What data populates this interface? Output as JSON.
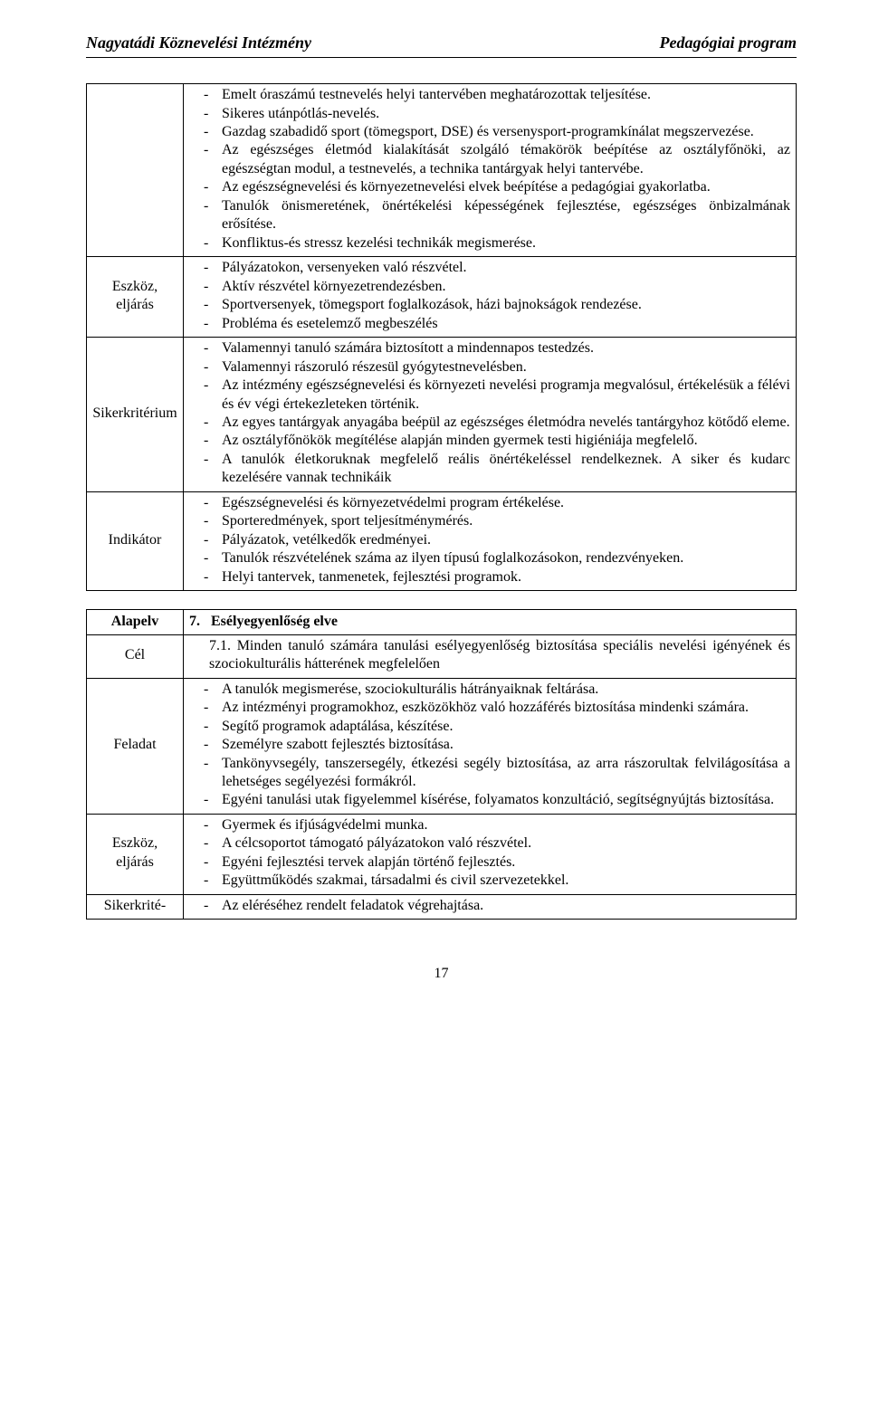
{
  "header": {
    "left": "Nagyatádi Köznevelési Intézmény",
    "right": "Pedagógiai program"
  },
  "table1": {
    "rows": [
      {
        "label": "",
        "items": [
          "Emelt óraszámú testnevelés helyi tantervében meghatározottak teljesítése.",
          "Sikeres utánpótlás-nevelés.",
          "Gazdag szabadidő sport (tömegsport, DSE) és versenysport-programkínálat megszervezése.",
          "Az egészséges életmód kialakítását szolgáló témakörök beépítése az osztályfőnöki, az egészségtan modul, a testnevelés, a technika tantárgyak helyi tantervébe.",
          "Az egészségnevelési és környezetnevelési elvek beépítése a pedagógiai gyakorlatba.",
          "Tanulók önismeretének, önértékelési képességének fejlesztése, egészséges önbizalmának erősítése.",
          "Konfliktus-és stressz kezelési technikák megismerése."
        ]
      },
      {
        "label": "Eszköz, eljárás",
        "items": [
          "Pályázatokon, versenyeken való részvétel.",
          "Aktív részvétel környezetrendezésben.",
          "Sportversenyek, tömegsport foglalkozások, házi bajnokságok rendezése.",
          "Probléma és esetelemző megbeszélés"
        ]
      },
      {
        "label": "Sikerkritérium",
        "items": [
          "Valamennyi tanuló számára biztosított a mindennapos testedzés.",
          "Valamennyi rászoruló részesül gyógytestnevelésben.",
          "Az intézmény egészségnevelési és környezeti nevelési programja megvalósul, értékelésük a félévi és év végi értekezleteken történik.",
          "Az egyes tantárgyak anyagába beépül az egészséges életmódra nevelés tantárgyhoz kötődő eleme.",
          "Az osztályfőnökök megítélése alapján minden gyermek testi higiéniája megfelelő.",
          "A tanulók életkoruknak megfelelő reális önértékeléssel rendelkeznek. A siker és kudarc kezelésére vannak technikáik"
        ]
      },
      {
        "label": "Indikátor",
        "items": [
          "Egészségnevelési és környezetvédelmi program értékelése.",
          "Sporteredmények, sport teljesítménymérés.",
          "Pályázatok, vetélkedők eredményei.",
          "Tanulók részvételének száma az ilyen típusú foglalkozásokon, rendezvényeken.",
          "Helyi tantervek, tanmenetek, fejlesztési programok."
        ]
      }
    ]
  },
  "table2": {
    "principle_label": "Alapelv",
    "principle_number": "7.",
    "principle_title": "Esélyegyenlőség elve",
    "goal_label": "Cél",
    "goal_text": "7.1. Minden tanuló számára tanulási esélyegyenlőség biztosítása speciális nevelési igényének és szociokulturális hátterének megfelelően",
    "rows": [
      {
        "label": "Feladat",
        "items": [
          "A tanulók megismerése, szociokulturális hátrányaiknak feltárása.",
          "Az intézményi programokhoz, eszközökhöz való hozzáférés biztosítása mindenki számára.",
          "Segítő programok adaptálása, készítése.",
          "Személyre szabott fejlesztés biztosítása.",
          "Tankönyvsegély, tanszersegély, étkezési segély biztosítása, az arra rászorultak felvilágosítása a lehetséges segélyezési formákról.",
          "Egyéni tanulási utak figyelemmel kísérése, folyamatos konzultáció, segítségnyújtás biztosítása."
        ]
      },
      {
        "label": "Eszköz, eljárás",
        "items": [
          "Gyermek és ifjúságvédelmi munka.",
          "A célcsoportot támogató pályázatokon való részvétel.",
          "Egyéni fejlesztési tervek alapján történő fejlesztés.",
          "Együttműködés szakmai, társadalmi és civil szervezetekkel."
        ]
      },
      {
        "label": "Sikerkrité-",
        "items": [
          "Az eléréséhez rendelt feladatok végrehajtása."
        ]
      }
    ]
  },
  "page_number": "17"
}
